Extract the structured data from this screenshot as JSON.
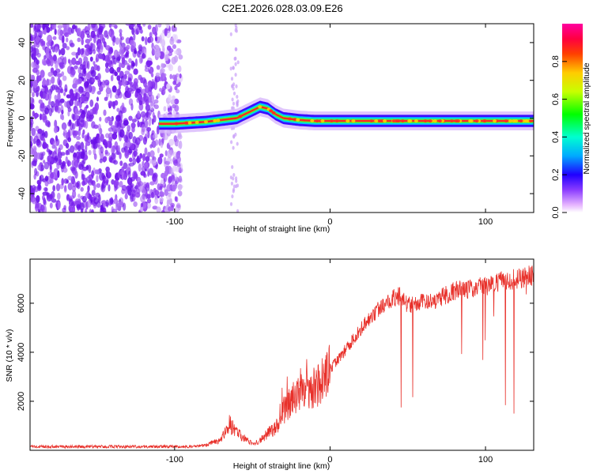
{
  "title": "C2E1.2026.028.03.09.E26",
  "chart_data": [
    {
      "type": "heatmap",
      "name": "spectrogram",
      "xlabel": "Height of straight line (km)",
      "ylabel": "Frequency (Hz)",
      "xlim": [
        -193,
        131
      ],
      "ylim": [
        -50,
        50
      ],
      "x_ticks": [
        -100,
        0,
        100
      ],
      "y_ticks": [
        -40,
        -20,
        0,
        20,
        40
      ],
      "signal_track": {
        "x": [
          -110,
          -100,
          -90,
          -80,
          -70,
          -60,
          -55,
          -50,
          -45,
          -40,
          -35,
          -30,
          -20,
          -10,
          0,
          10,
          20,
          40,
          60,
          80,
          100,
          120,
          131
        ],
        "frequency": [
          -3,
          -3,
          -2.5,
          -2,
          -1,
          0,
          2,
          4,
          6,
          5,
          2,
          0,
          -1,
          -1.5,
          -1.5,
          -1.5,
          -1.5,
          -1.5,
          -1.5,
          -1.5,
          -1.5,
          -1.5,
          -1.5
        ]
      },
      "colorbar": {
        "label": "Normalized spectral amplitude",
        "range": [
          0,
          1
        ],
        "ticks": [
          0.0,
          0.2,
          0.4,
          0.6,
          0.8
        ],
        "tick_labels": [
          "0.0",
          "0.2",
          "0.4",
          "0.6",
          "0.8"
        ]
      }
    },
    {
      "type": "line",
      "name": "snr",
      "xlabel": "Height of straight line (km)",
      "ylabel": "SNR (10 * v/v)",
      "xlim": [
        -193,
        131
      ],
      "ylim": [
        0,
        7800
      ],
      "x_ticks": [
        -100,
        0,
        100
      ],
      "y_ticks": [
        2000,
        4000,
        6000
      ],
      "color": "#e8302a",
      "trend": {
        "x": [
          -193,
          -90,
          -80,
          -70,
          -65,
          -60,
          -55,
          -50,
          -45,
          -40,
          -35,
          -30,
          -25,
          -20,
          -15,
          -10,
          -5,
          0,
          10,
          20,
          30,
          40,
          45,
          50,
          60,
          70,
          80,
          90,
          100,
          110,
          120,
          131
        ],
        "y": [
          150,
          150,
          200,
          450,
          1100,
          700,
          500,
          250,
          400,
          700,
          900,
          1600,
          2000,
          2400,
          2600,
          2500,
          2800,
          3300,
          4100,
          5000,
          5700,
          6200,
          6300,
          5900,
          6050,
          6200,
          6500,
          6600,
          6700,
          6900,
          7000,
          7150
        ]
      }
    }
  ],
  "colors": {
    "line": "#e8302a",
    "noise": "#7a20ee",
    "axis": "#000000"
  }
}
